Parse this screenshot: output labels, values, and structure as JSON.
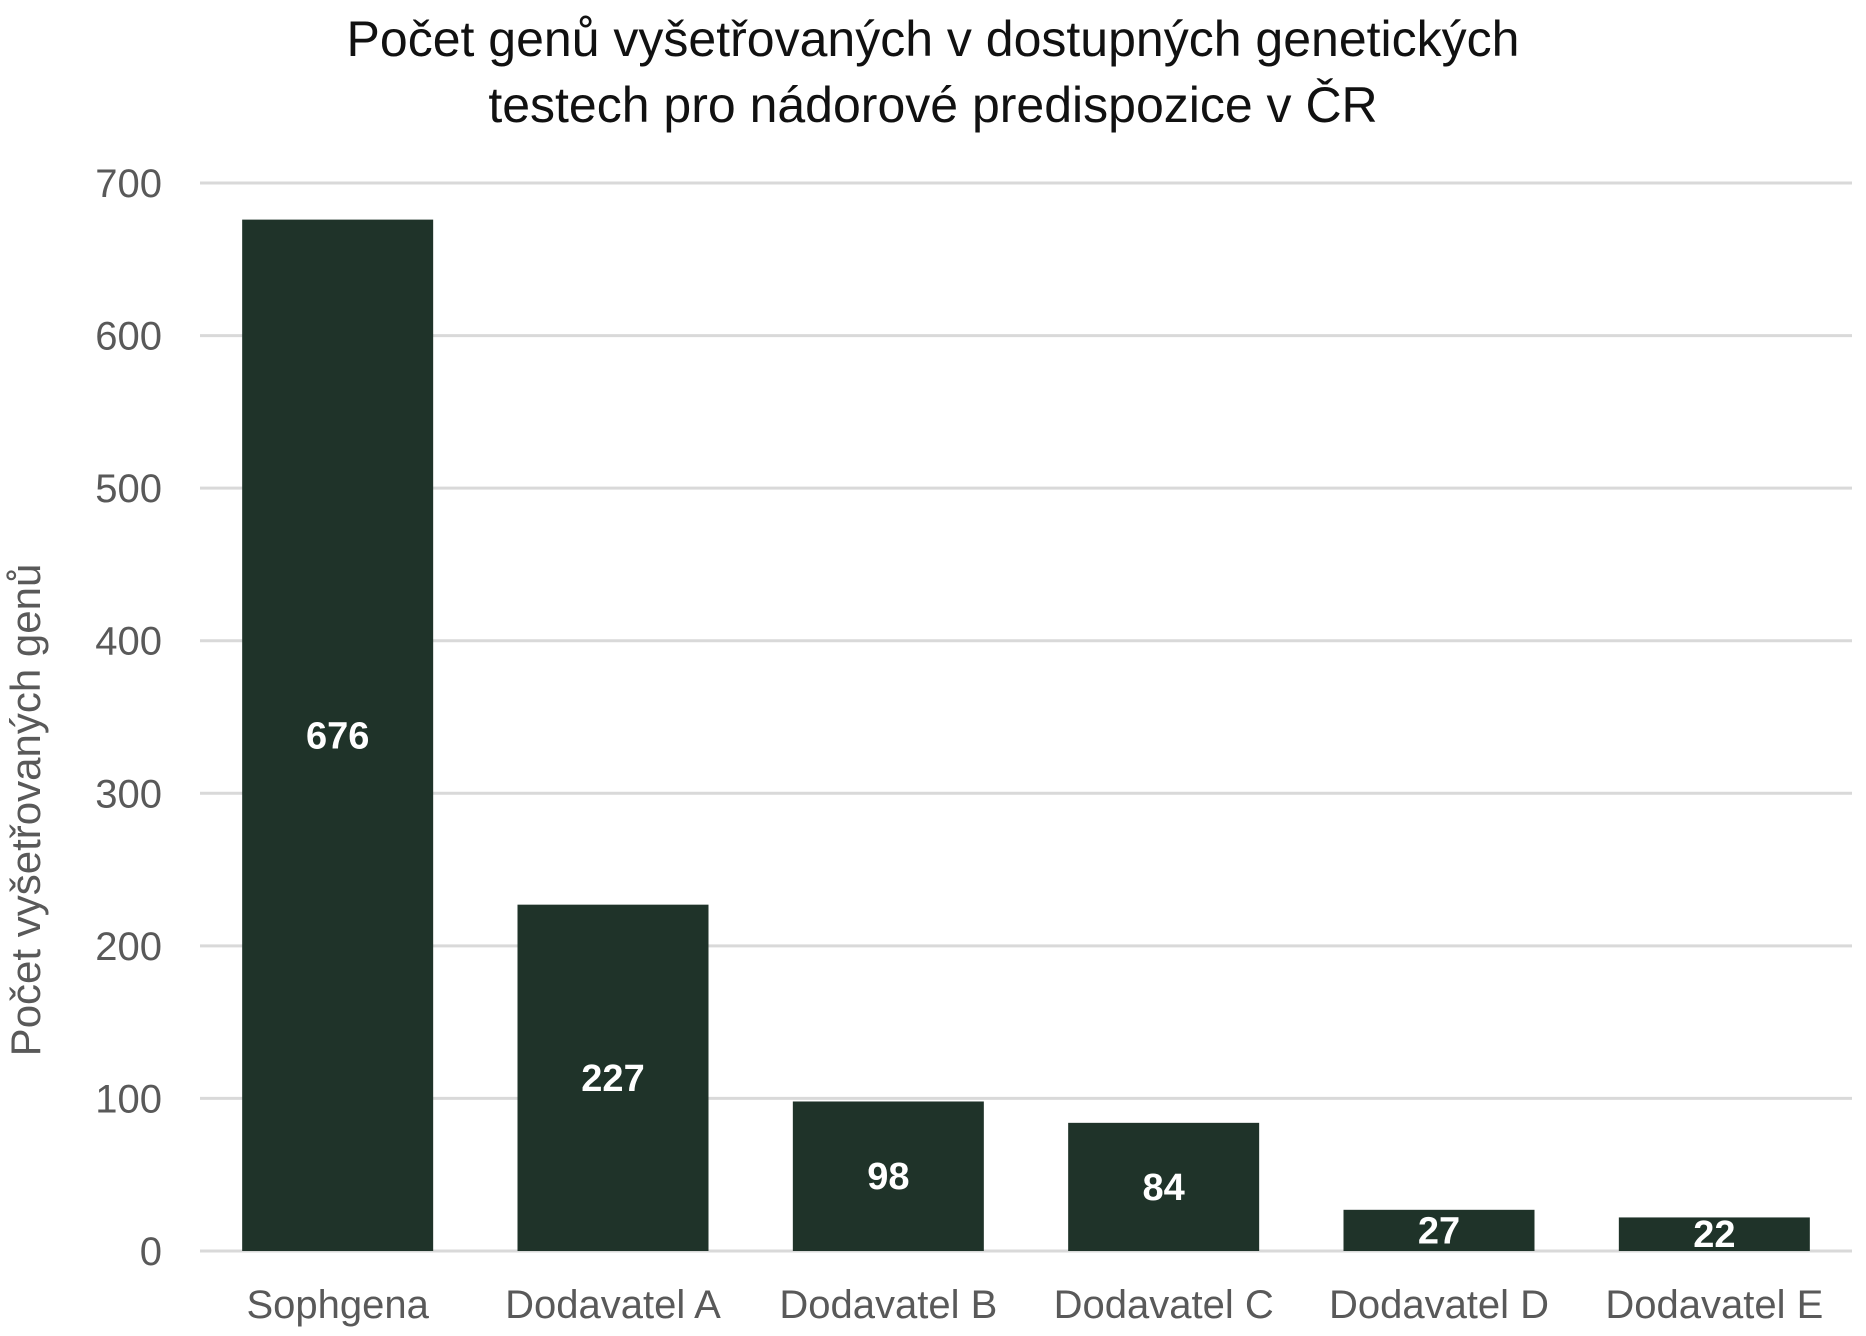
{
  "chart_data": {
    "type": "bar",
    "title_lines": [
      "Počet genů vyšetřovaných v dostupných genetických",
      "testech pro nádorové predispozice v ČR"
    ],
    "xlabel": "",
    "ylabel": "Počet vyšetřovaných genů",
    "categories": [
      "Sophgena",
      "Dodavatel A",
      "Dodavatel B",
      "Dodavatel C",
      "Dodavatel D",
      "Dodavatel E"
    ],
    "values": [
      676,
      227,
      98,
      84,
      27,
      22
    ],
    "data_labels": [
      "676",
      "227",
      "98",
      "84",
      "27",
      "22"
    ],
    "ylim": [
      0,
      700
    ],
    "yticks": [
      0,
      100,
      200,
      300,
      400,
      500,
      600,
      700
    ],
    "grid": true,
    "legend": "none",
    "bar_color": "#1f3329",
    "grid_color": "#d9d9d9"
  }
}
